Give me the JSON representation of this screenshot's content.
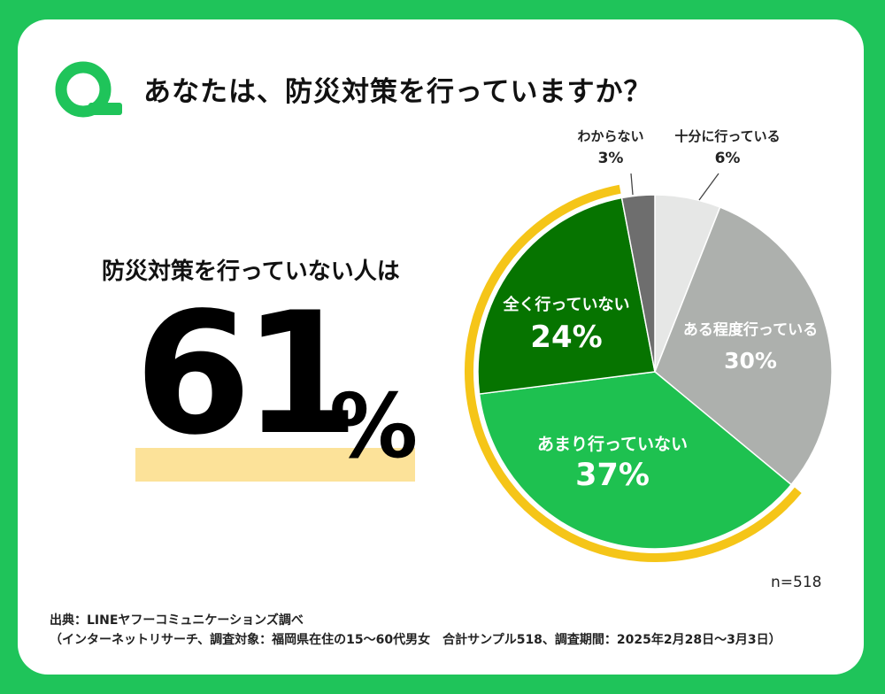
{
  "question": "あなたは、防災対策を行っていますか？",
  "headline": "防災対策を行っていない人は",
  "highlight": {
    "number": "61",
    "unit": "%"
  },
  "n_label": "n=518",
  "source": {
    "line1": "出典：LINEヤフーコミュニケーションズ調べ",
    "line2": "（インターネットリサーチ、調査対象：福岡県在住の15～60代男女　合計サンプル518、調査期間：2025年2月28日～3月3日）"
  },
  "colors": {
    "background": "#1fc45a",
    "highlight_bar": "#fce299",
    "outer_arc": "#f5c518"
  },
  "chart_data": {
    "type": "pie",
    "title": "あなたは、防災対策を行っていますか？",
    "n": 518,
    "slices": [
      {
        "label": "十分に行っている",
        "value": 6,
        "color": "#e6e7e6",
        "text_color": "#222222"
      },
      {
        "label": "ある程度行っている",
        "value": 30,
        "color": "#adb0ad",
        "text_color": "#ffffff"
      },
      {
        "label": "あまり行っていない",
        "value": 37,
        "color": "#1ec150",
        "text_color": "#ffffff"
      },
      {
        "label": "全く行っていない",
        "value": 24,
        "color": "#067400",
        "text_color": "#ffffff"
      },
      {
        "label": "わからない",
        "value": 3,
        "color": "#6e6e6e",
        "text_color": "#222222"
      }
    ],
    "highlighted_group": {
      "label_ref": "防災対策を行っていない人は",
      "value": 61,
      "members": [
        "あまり行っていない",
        "全く行っていない"
      ]
    }
  }
}
